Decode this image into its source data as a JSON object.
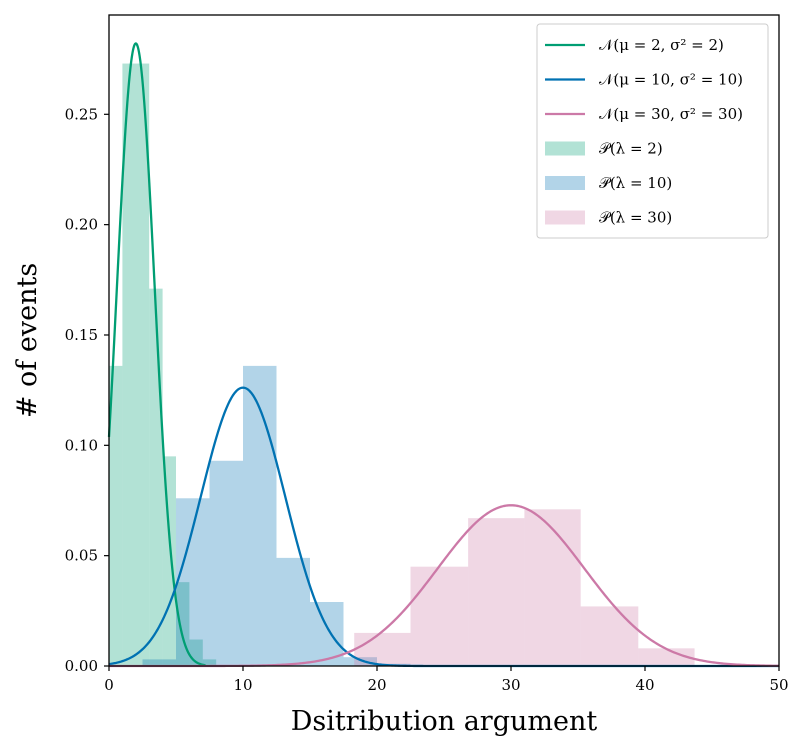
{
  "chart_data": {
    "type": "bar",
    "title": "",
    "xlabel": "Dsitribution argument",
    "ylabel": "# of events",
    "xlim": [
      0,
      50
    ],
    "ylim": [
      0,
      0.295
    ],
    "xticks": [
      "0",
      "10",
      "20",
      "30",
      "40",
      "50"
    ],
    "xtick_values": [
      0,
      10,
      20,
      30,
      40,
      50
    ],
    "yticks": [
      "0.00",
      "0.05",
      "0.10",
      "0.15",
      "0.20",
      "0.25"
    ],
    "ytick_values": [
      0,
      0.05,
      0.1,
      0.15,
      0.2,
      0.25
    ],
    "grid": false,
    "legend_position": "top-right",
    "histograms": [
      {
        "name": "𝒫(λ = 2)",
        "color": "#009E73",
        "opacity": 0.3,
        "bins": [
          {
            "x0": 0,
            "x1": 1.0,
            "y": 0.136
          },
          {
            "x0": 1.0,
            "x1": 3.0,
            "y": 0.273
          },
          {
            "x0": 3.0,
            "x1": 4.0,
            "y": 0.171
          },
          {
            "x0": 4.0,
            "x1": 5.0,
            "y": 0.095
          },
          {
            "x0": 5.0,
            "x1": 6.0,
            "y": 0.038
          },
          {
            "x0": 6.0,
            "x1": 7.0,
            "y": 0.012
          },
          {
            "x0": 7.0,
            "x1": 8.0,
            "y": 0.003
          }
        ]
      },
      {
        "name": "𝒫(λ = 10)",
        "color": "#0072B2",
        "opacity": 0.3,
        "bins": [
          {
            "x0": 2.5,
            "x1": 5.0,
            "y": 0.003
          },
          {
            "x0": 5.0,
            "x1": 7.5,
            "y": 0.076
          },
          {
            "x0": 7.5,
            "x1": 10.0,
            "y": 0.093
          },
          {
            "x0": 10.0,
            "x1": 12.5,
            "y": 0.136
          },
          {
            "x0": 12.5,
            "x1": 15.0,
            "y": 0.049
          },
          {
            "x0": 15.0,
            "x1": 17.5,
            "y": 0.029
          },
          {
            "x0": 17.5,
            "x1": 20.0,
            "y": 0.004
          },
          {
            "x0": 20.0,
            "x1": 22.5,
            "y": 0.001
          }
        ]
      },
      {
        "name": "𝒫(λ = 30)",
        "color": "#CC79A7",
        "opacity": 0.3,
        "bins": [
          {
            "x0": 18.3,
            "x1": 22.5,
            "y": 0.015
          },
          {
            "x0": 22.5,
            "x1": 26.8,
            "y": 0.045
          },
          {
            "x0": 26.8,
            "x1": 31.0,
            "y": 0.067
          },
          {
            "x0": 31.0,
            "x1": 35.2,
            "y": 0.071
          },
          {
            "x0": 35.2,
            "x1": 39.5,
            "y": 0.027
          },
          {
            "x0": 39.5,
            "x1": 43.7,
            "y": 0.008
          }
        ]
      }
    ],
    "curves": [
      {
        "name": "𝒩(μ = 2, σ² = 2)",
        "color": "#009E73",
        "mu": 2,
        "sigma2": 2,
        "x_range": [
          0,
          7.2
        ]
      },
      {
        "name": "𝒩(μ = 10, σ² = 10)",
        "color": "#0072B2",
        "mu": 10,
        "sigma2": 10,
        "x_range": [
          0,
          50
        ]
      },
      {
        "name": "𝒩(μ = 30, σ² = 30)",
        "color": "#CC79A7",
        "mu": 30,
        "sigma2": 30,
        "x_range": [
          0,
          50
        ]
      }
    ]
  }
}
